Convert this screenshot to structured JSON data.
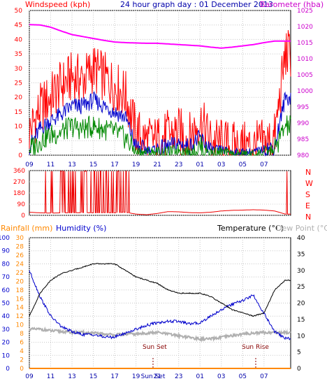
{
  "header": {
    "windspeed_label": "Windspeed (kph)",
    "title": "24 hour graph day : 01 December 2013",
    "barometer_label": "Barometer (hba)"
  },
  "legend2": {
    "rainfall": "Rainfall (mm)",
    "humidity": "Humidity (%)",
    "temperature": "Temperature (°C)",
    "dewpoint": "Dew Point (°C)"
  },
  "compass_letters": [
    "N",
    "W",
    "S",
    "E",
    "N"
  ],
  "sun": {
    "set": "Sun Set",
    "rise": "Sun Rise"
  },
  "colors": {
    "wind_gust": "#ff0000",
    "wind_avg": "#0000cc",
    "wind_low": "#008800",
    "barometer": "#ff00ff",
    "direction": "#ee0000",
    "humidity": "#0000cc",
    "temperature": "#000000",
    "dewpoint": "#b0b0b0",
    "rainfall": "#ff8800",
    "left_axis": "#ff0000",
    "right_axis": "#cc00cc"
  },
  "chart_data": [
    {
      "type": "line",
      "name": "wind-barometer",
      "x_ticks": [
        "11",
        "13",
        "15",
        "17",
        "19",
        "21",
        "23",
        "01",
        "03",
        "05",
        "07",
        "09"
      ],
      "wind_axis": {
        "ylim": [
          0,
          50
        ],
        "ticks": [
          0,
          5,
          10,
          15,
          20,
          25,
          30,
          35,
          40,
          45,
          50
        ]
      },
      "baro_axis": {
        "ylim": [
          980,
          1025
        ],
        "ticks": [
          980,
          985,
          990,
          995,
          1000,
          1005,
          1010,
          1015,
          1020,
          1025
        ]
      },
      "x_hours": [
        9,
        10,
        11,
        12,
        13,
        14,
        15,
        16,
        17,
        18,
        19,
        20,
        21,
        22,
        23,
        24,
        25,
        26,
        27,
        28,
        29,
        30,
        31,
        32,
        33
      ],
      "series": [
        {
          "key": "gust",
          "values": [
            8,
            16,
            20,
            24,
            27,
            26,
            30,
            27,
            24,
            21,
            8,
            5,
            5,
            7,
            8,
            6,
            12,
            5,
            4,
            3,
            3,
            3,
            4,
            6,
            35
          ]
        },
        {
          "key": "average",
          "values": [
            3,
            9,
            12,
            14,
            17,
            17,
            19,
            17,
            15,
            13,
            3,
            2,
            2,
            3,
            4,
            3,
            6,
            2,
            2,
            1,
            1,
            1,
            2,
            3,
            20
          ]
        },
        {
          "key": "low",
          "values": [
            2,
            5,
            7,
            8,
            10,
            9,
            10,
            9,
            8,
            6,
            1,
            1,
            1,
            1,
            2,
            1,
            3,
            1,
            1,
            0,
            0,
            0,
            1,
            2,
            10
          ]
        },
        {
          "key": "barometer",
          "values": [
            1020.6,
            1020.5,
            1019.8,
            1018.6,
            1017.5,
            1016.9,
            1016.3,
            1015.7,
            1015.2,
            1015.0,
            1014.9,
            1014.8,
            1014.8,
            1014.6,
            1014.4,
            1014.2,
            1014.0,
            1013.6,
            1013.3,
            1013.6,
            1014.0,
            1014.4,
            1015.0,
            1015.5,
            1015.5
          ]
        }
      ]
    },
    {
      "type": "line",
      "name": "wind-direction",
      "x_ticks": [],
      "ylim": [
        0,
        360
      ],
      "ticks": [
        0,
        90,
        180,
        270,
        360
      ],
      "x_hours": [
        9,
        10,
        11,
        12,
        13,
        14,
        15,
        16,
        17,
        18,
        19,
        20,
        21,
        22,
        23,
        24,
        25,
        26,
        27,
        28,
        29,
        30,
        31,
        32,
        33
      ],
      "series": [
        {
          "key": "direction",
          "values": [
            25,
            20,
            18,
            20,
            20,
            22,
            20,
            22,
            20,
            25,
            10,
            5,
            15,
            30,
            28,
            22,
            20,
            25,
            35,
            40,
            42,
            45,
            42,
            35,
            10
          ]
        }
      ]
    },
    {
      "type": "line",
      "name": "humidity-temperature",
      "x_ticks": [
        "11",
        "13",
        "15",
        "17",
        "19",
        "Sun Set",
        "21",
        "23",
        "01",
        "03",
        "05",
        "07",
        "09"
      ],
      "humidity_axis": {
        "ylim": [
          0,
          100
        ],
        "ticks": [
          0,
          10,
          20,
          30,
          40,
          50,
          60,
          70,
          80,
          90,
          100
        ]
      },
      "rain_axis": {
        "ylim": [
          0,
          30
        ],
        "ticks": [
          0,
          2,
          4,
          6,
          8,
          10,
          12,
          14,
          16,
          18,
          20,
          22,
          24,
          26,
          28,
          30
        ]
      },
      "temp_axis": {
        "ylim": [
          0,
          40
        ],
        "ticks": [
          0,
          5,
          10,
          15,
          20,
          25,
          30,
          35,
          40
        ]
      },
      "x_hours": [
        9,
        10,
        11,
        12,
        13,
        14,
        15,
        16,
        17,
        18,
        19,
        20,
        21,
        22,
        23,
        24,
        25,
        26,
        27,
        28,
        29,
        30,
        31,
        32,
        33
      ],
      "series": [
        {
          "key": "humidity",
          "values": [
            75,
            55,
            40,
            32,
            28,
            26,
            26,
            24,
            24,
            27,
            30,
            33,
            35,
            36,
            36,
            34,
            35,
            40,
            45,
            49,
            52,
            56,
            42,
            28,
            23
          ]
        },
        {
          "key": "temperature",
          "values": [
            16,
            23,
            27,
            29,
            30,
            31,
            32,
            32,
            32,
            30,
            28,
            27,
            26,
            24,
            23,
            23,
            23,
            22,
            20,
            18,
            17,
            16,
            17,
            24,
            27
          ]
        },
        {
          "key": "dewpoint",
          "values": [
            12,
            12,
            11.5,
            11.3,
            11,
            11,
            10.8,
            10.5,
            10.3,
            10.5,
            10.5,
            10.8,
            11,
            10.5,
            10,
            9.5,
            9,
            9,
            9.5,
            10,
            10.5,
            10.8,
            11,
            11,
            11
          ]
        },
        {
          "key": "rainfall",
          "values": [
            0,
            0,
            0,
            0,
            0,
            0,
            0,
            0,
            0,
            0,
            0,
            0,
            0,
            0,
            0,
            0,
            0,
            0,
            0,
            0,
            0,
            0,
            0,
            0,
            0
          ]
        }
      ]
    }
  ]
}
